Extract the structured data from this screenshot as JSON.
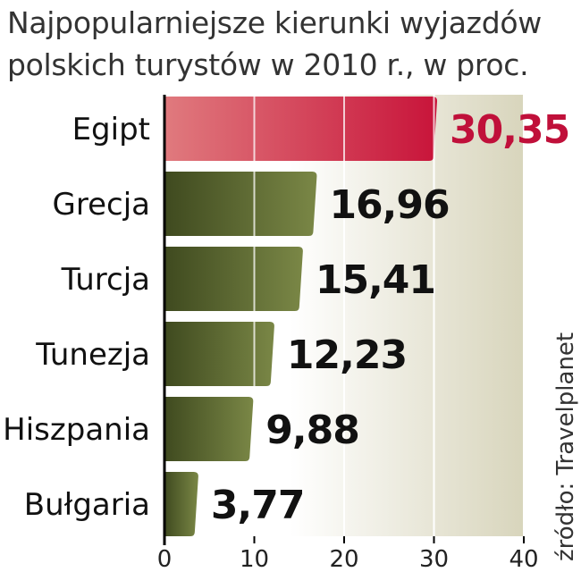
{
  "chart_data": {
    "type": "bar",
    "orientation": "horizontal",
    "title": "Najpopularniejsze kierunki wyjazdów",
    "subtitle": "polskich turystów w 2010 r., w proc.",
    "categories": [
      "Egipt",
      "Grecja",
      "Turcja",
      "Tunezja",
      "Hiszpania",
      "Bułgaria"
    ],
    "values": [
      30.35,
      16.96,
      15.41,
      12.23,
      9.88,
      3.77
    ],
    "value_labels": [
      "30,35",
      "16,96",
      "15,41",
      "12,23",
      "9,88",
      "3,77"
    ],
    "xlim": [
      0,
      40
    ],
    "xticks": [
      0,
      10,
      20,
      30,
      40
    ],
    "xtick_labels": [
      "0",
      "10",
      "20",
      "30",
      "40"
    ],
    "source": "źródło: Travelplanet",
    "grid": true,
    "colors": {
      "highlight_bar": "#c81a3a",
      "highlight_label": "#c0103a",
      "bar": "#5a6930",
      "label": "#111111",
      "background_panel": "#d9d6c0"
    }
  }
}
